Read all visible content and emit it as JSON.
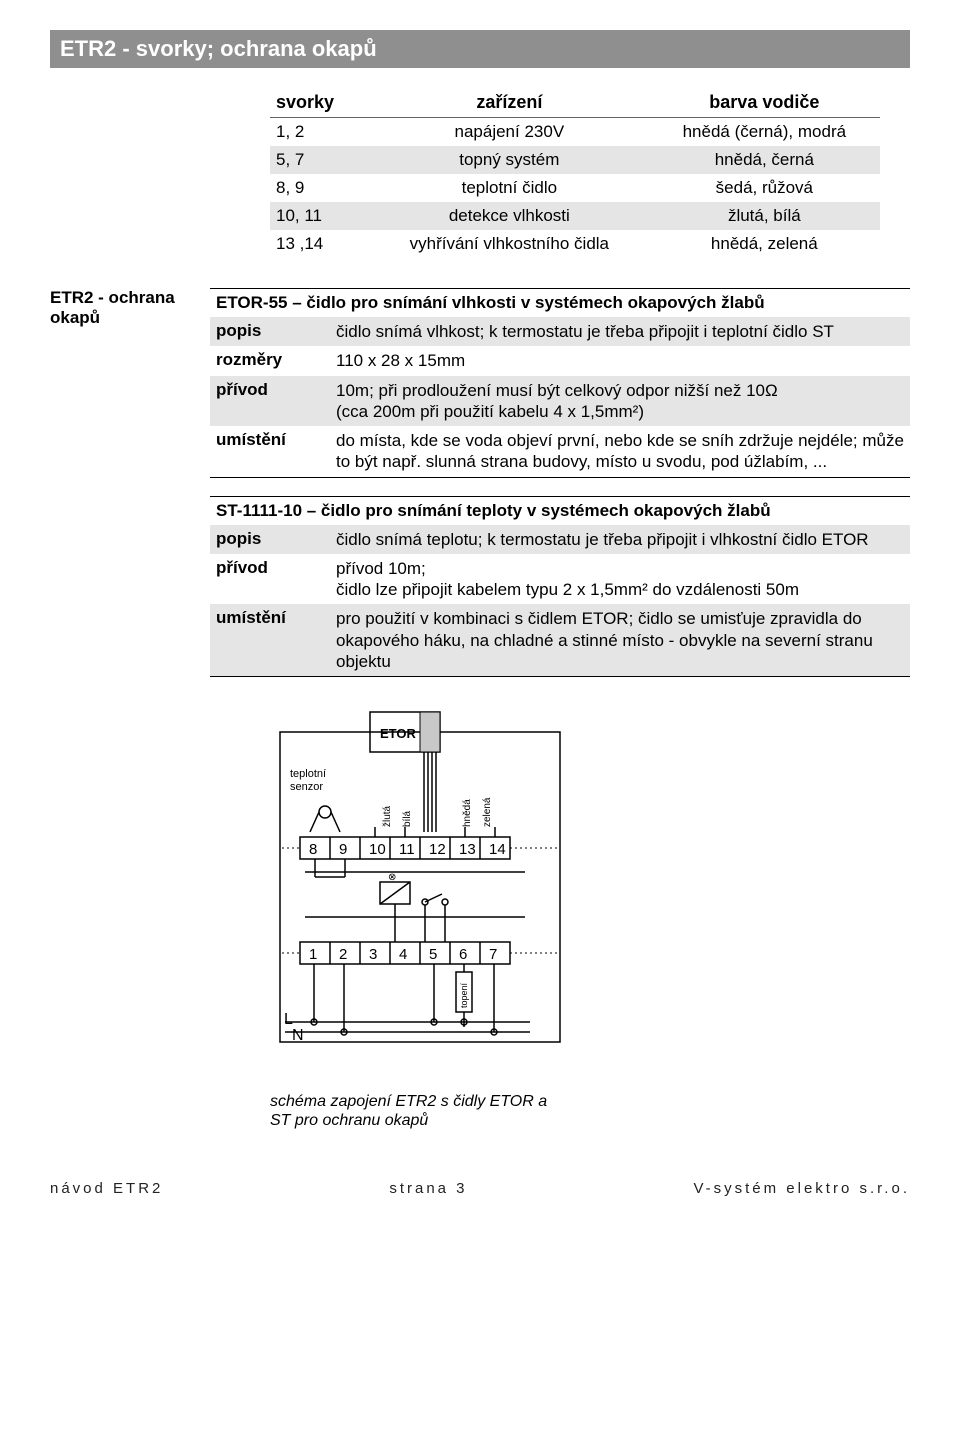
{
  "header": {
    "title": "ETR2 - svorky; ochrana okapů"
  },
  "table_svorky": {
    "headers": [
      "svorky",
      "zařízení",
      "barva vodiče"
    ],
    "rows": [
      {
        "shade": false,
        "c": [
          "1, 2",
          "napájení 230V",
          "hnědá (černá), modrá"
        ]
      },
      {
        "shade": true,
        "c": [
          "5, 7",
          "topný systém",
          "hnědá, černá"
        ]
      },
      {
        "shade": false,
        "c": [
          "8, 9",
          "teplotní čidlo",
          "šedá, růžová"
        ]
      },
      {
        "shade": true,
        "c": [
          "10, 11",
          "detekce vlhkosti",
          "žlutá, bílá"
        ]
      },
      {
        "shade": false,
        "c": [
          "13 ,14",
          "vyhřívání vlhkostního čidla",
          "hnědá, zelená"
        ]
      }
    ]
  },
  "sidebar": {
    "label": "ETR2 - ochrana okapů"
  },
  "etor": {
    "title": "ETOR-55 – čidlo pro snímání vlhkosti v systémech okapových žlabů",
    "rows": [
      {
        "shade": true,
        "k": "popis",
        "v": "čidlo snímá vlhkost; k termostatu je třeba připojit i teplotní čidlo ST"
      },
      {
        "shade": false,
        "k": "rozměry",
        "v": "110 x 28 x 15mm"
      },
      {
        "shade": true,
        "k": "přívod",
        "v": "10m; při prodloužení musí být celkový odpor nižší než 10Ω\n(cca 200m při použití kabelu 4 x 1,5mm²)"
      },
      {
        "shade": false,
        "k": "umístění",
        "v": "do místa, kde se voda objeví první, nebo kde se sníh zdržuje nejdéle; může to být např. slunná strana budovy, místo u svodu, pod úžlabím, ..."
      }
    ]
  },
  "st": {
    "title": "ST-1111-10 – čidlo pro snímání teploty v systémech okapových žlabů",
    "rows": [
      {
        "shade": true,
        "k": "popis",
        "v": "čidlo snímá teplotu; k termostatu je třeba připojit i vlhkostní čidlo ETOR"
      },
      {
        "shade": false,
        "k": "přívod",
        "v": "přívod 10m;\nčidlo lze připojit kabelem typu 2 x 1,5mm² do vzdálenosti 50m"
      },
      {
        "shade": true,
        "k": "umístění",
        "v": "pro použití v kombinaci s čidlem ETOR; čidlo se umisťuje zpravidla do okapového háku, na chladné a stinné místo - obvykle na severní stranu objektu"
      }
    ]
  },
  "diagram": {
    "etor_label": "ETOR",
    "sensor_label": "teplotní\nsenzor",
    "wire_labels": [
      "žlutá",
      "bílá",
      "hnědá",
      "zelená"
    ],
    "top_terminals": [
      "8",
      "9",
      "10",
      "11",
      "12",
      "13",
      "14"
    ],
    "bottom_terminals": [
      "1",
      "2",
      "3",
      "4",
      "5",
      "6",
      "7"
    ],
    "ln": {
      "L": "L",
      "N": "N"
    },
    "topeni": "topení",
    "caption": "schéma zapojení ETR2 s čidly ETOR a ST pro ochranu okapů"
  },
  "footer": {
    "left": "návod ETR2",
    "mid": "strana 3",
    "right": "V-systém elektro s.r.o."
  },
  "colors": {
    "header_bg": "#8f8f8f",
    "shade_bg": "#e5e5e5",
    "stroke": "#000000"
  }
}
